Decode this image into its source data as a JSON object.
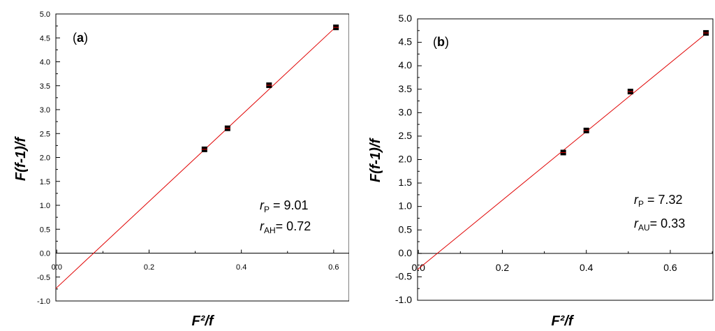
{
  "chart_data": [
    {
      "type": "scatter",
      "panel_label": "a",
      "xlabel": "F²/f",
      "ylabel": "F(f-1)/f",
      "xlim": [
        0.0,
        0.63
      ],
      "ylim": [
        -1.0,
        5.0
      ],
      "x_ticks": [
        "0.0",
        "0.2",
        "0.4",
        "0.6"
      ],
      "y_ticks": [
        "-1.0",
        "-0.5",
        "0.0",
        "0.5",
        "1.0",
        "1.5",
        "2.0",
        "2.5",
        "3.0",
        "3.5",
        "4.0",
        "4.5",
        "5.0"
      ],
      "x": [
        0.32,
        0.37,
        0.46,
        0.605
      ],
      "y": [
        2.17,
        2.61,
        3.51,
        4.72
      ],
      "fit_line": {
        "slope": 9.01,
        "intercept": -0.72,
        "color": "#e00000"
      },
      "annotations": [
        {
          "symbol": "r",
          "sub": "P",
          "text": " = 9.01"
        },
        {
          "symbol": "r",
          "sub": "AH",
          "text": "= 0.72"
        }
      ],
      "grid": false,
      "marker_color": "#000000"
    },
    {
      "type": "scatter",
      "panel_label": "b",
      "xlabel": "F²/f",
      "ylabel": "F(f-1)/f",
      "xlim": [
        0.0,
        0.7
      ],
      "ylim": [
        -1.0,
        5.0
      ],
      "x_ticks": [
        "0.0",
        "0.2",
        "0.4",
        "0.6"
      ],
      "y_ticks": [
        "-1.0",
        "-0.5",
        "0.0",
        "0.5",
        "1.0",
        "1.5",
        "2.0",
        "2.5",
        "3.0",
        "3.5",
        "4.0",
        "4.5",
        "5.0"
      ],
      "x": [
        0.345,
        0.4,
        0.505,
        0.685
      ],
      "y": [
        2.15,
        2.62,
        3.45,
        4.7
      ],
      "fit_line": {
        "slope": 7.32,
        "intercept": -0.33,
        "color": "#e00000"
      },
      "annotations": [
        {
          "symbol": "r",
          "sub": "P",
          "text": " = 7.32"
        },
        {
          "symbol": "r",
          "sub": "AU",
          "text": "= 0.33"
        }
      ],
      "grid": false,
      "marker_color": "#000000"
    }
  ]
}
